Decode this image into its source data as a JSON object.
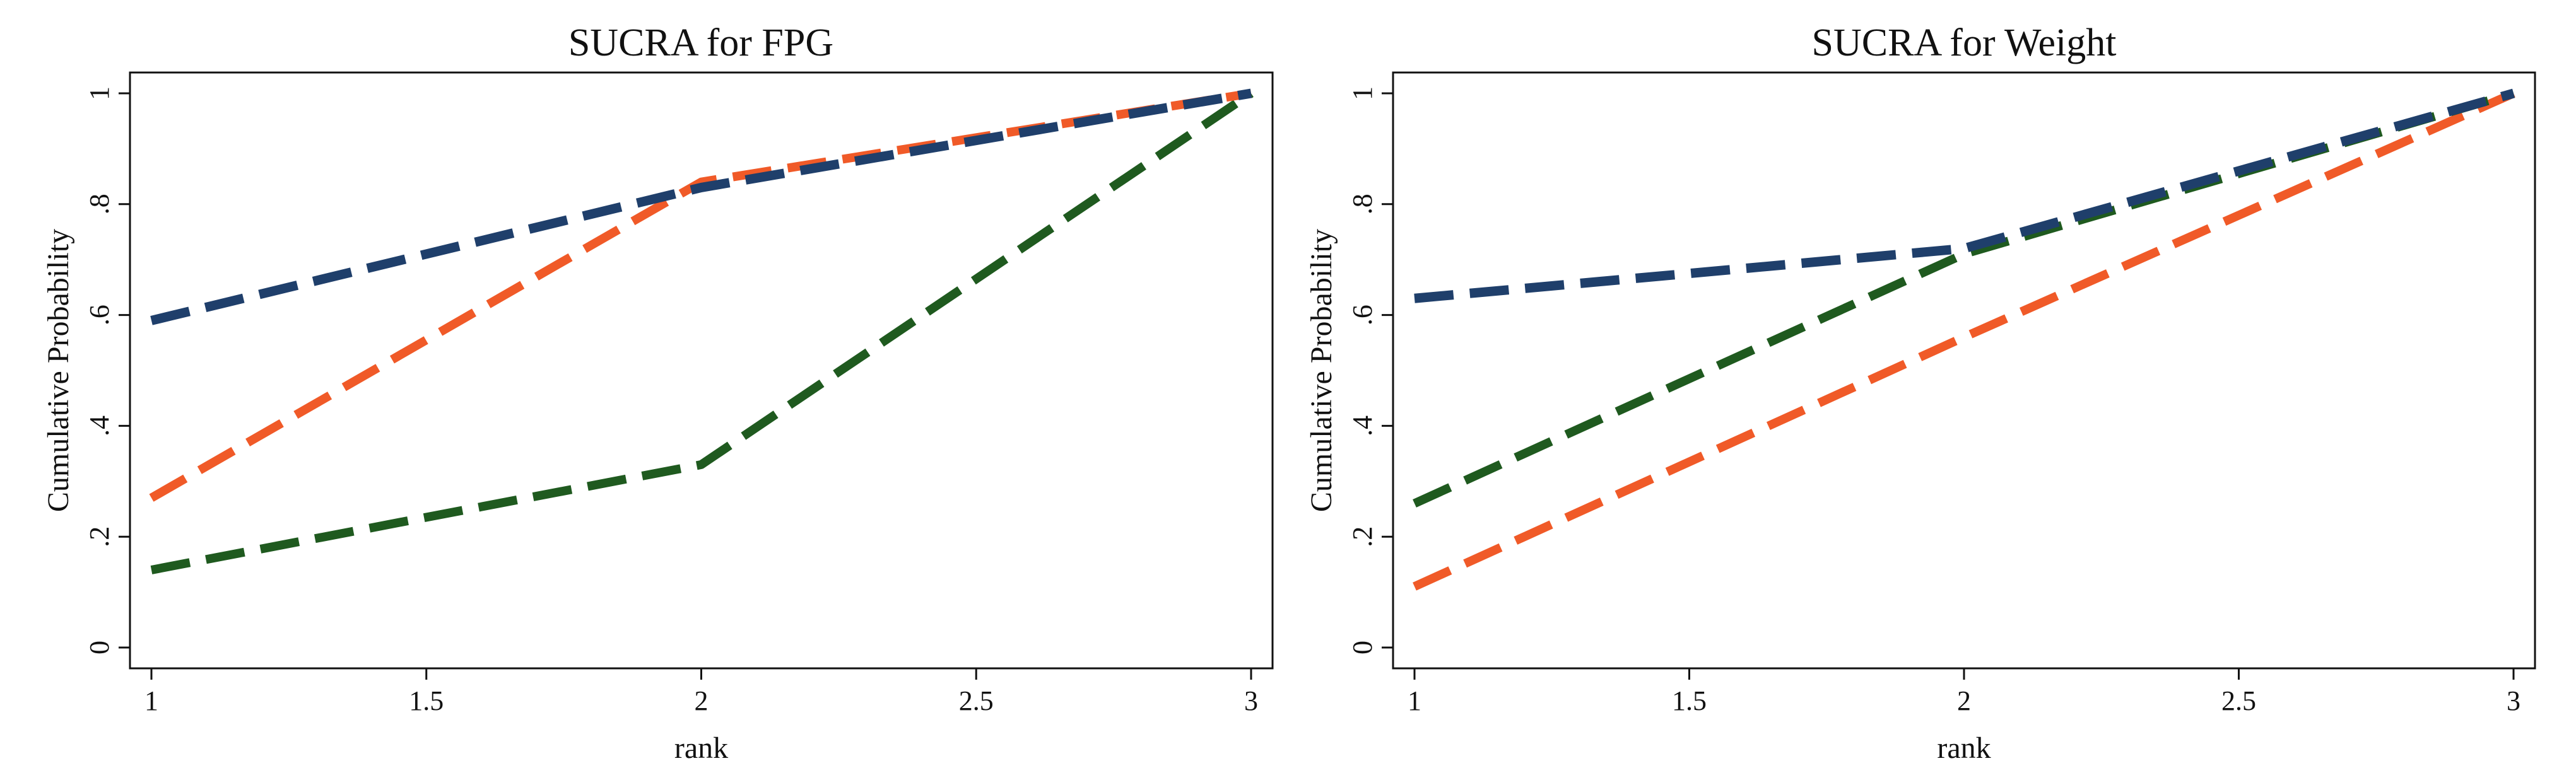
{
  "chart_data": [
    {
      "type": "line",
      "title": "SUCRA for FPG",
      "xlabel": "rank",
      "ylabel": "Cumulative Probability",
      "x": [
        1,
        2,
        3
      ],
      "xlim": [
        1,
        3
      ],
      "ylim": [
        0,
        1
      ],
      "x_ticks": [
        "1",
        "1.5",
        "2",
        "2.5",
        "3"
      ],
      "y_ticks": [
        "0",
        ".2",
        ".4",
        ".6",
        ".8",
        "1"
      ],
      "grid": false,
      "legend": "none",
      "series": [
        {
          "values": [
            0.14,
            0.33,
            1.0
          ],
          "color": "#1f5a1f"
        },
        {
          "values": [
            0.27,
            0.84,
            1.0
          ],
          "color": "#f05a28"
        },
        {
          "values": [
            0.59,
            0.83,
            1.0
          ],
          "color": "#1f3f6b"
        }
      ]
    },
    {
      "type": "line",
      "title": "SUCRA for Weight",
      "xlabel": "rank",
      "ylabel": "Cumulative Probability",
      "x": [
        1,
        2,
        3
      ],
      "xlim": [
        1,
        3
      ],
      "ylim": [
        0,
        1
      ],
      "x_ticks": [
        "1",
        "1.5",
        "2",
        "2.5",
        "3"
      ],
      "y_ticks": [
        "0",
        ".2",
        ".4",
        ".6",
        ".8",
        "1"
      ],
      "grid": false,
      "legend": "none",
      "series": [
        {
          "values": [
            0.11,
            0.56,
            1.0
          ],
          "color": "#f05a28"
        },
        {
          "values": [
            0.26,
            0.71,
            1.0
          ],
          "color": "#1f5a1f"
        },
        {
          "values": [
            0.63,
            0.72,
            1.0
          ],
          "color": "#1f3f6b"
        }
      ]
    }
  ]
}
